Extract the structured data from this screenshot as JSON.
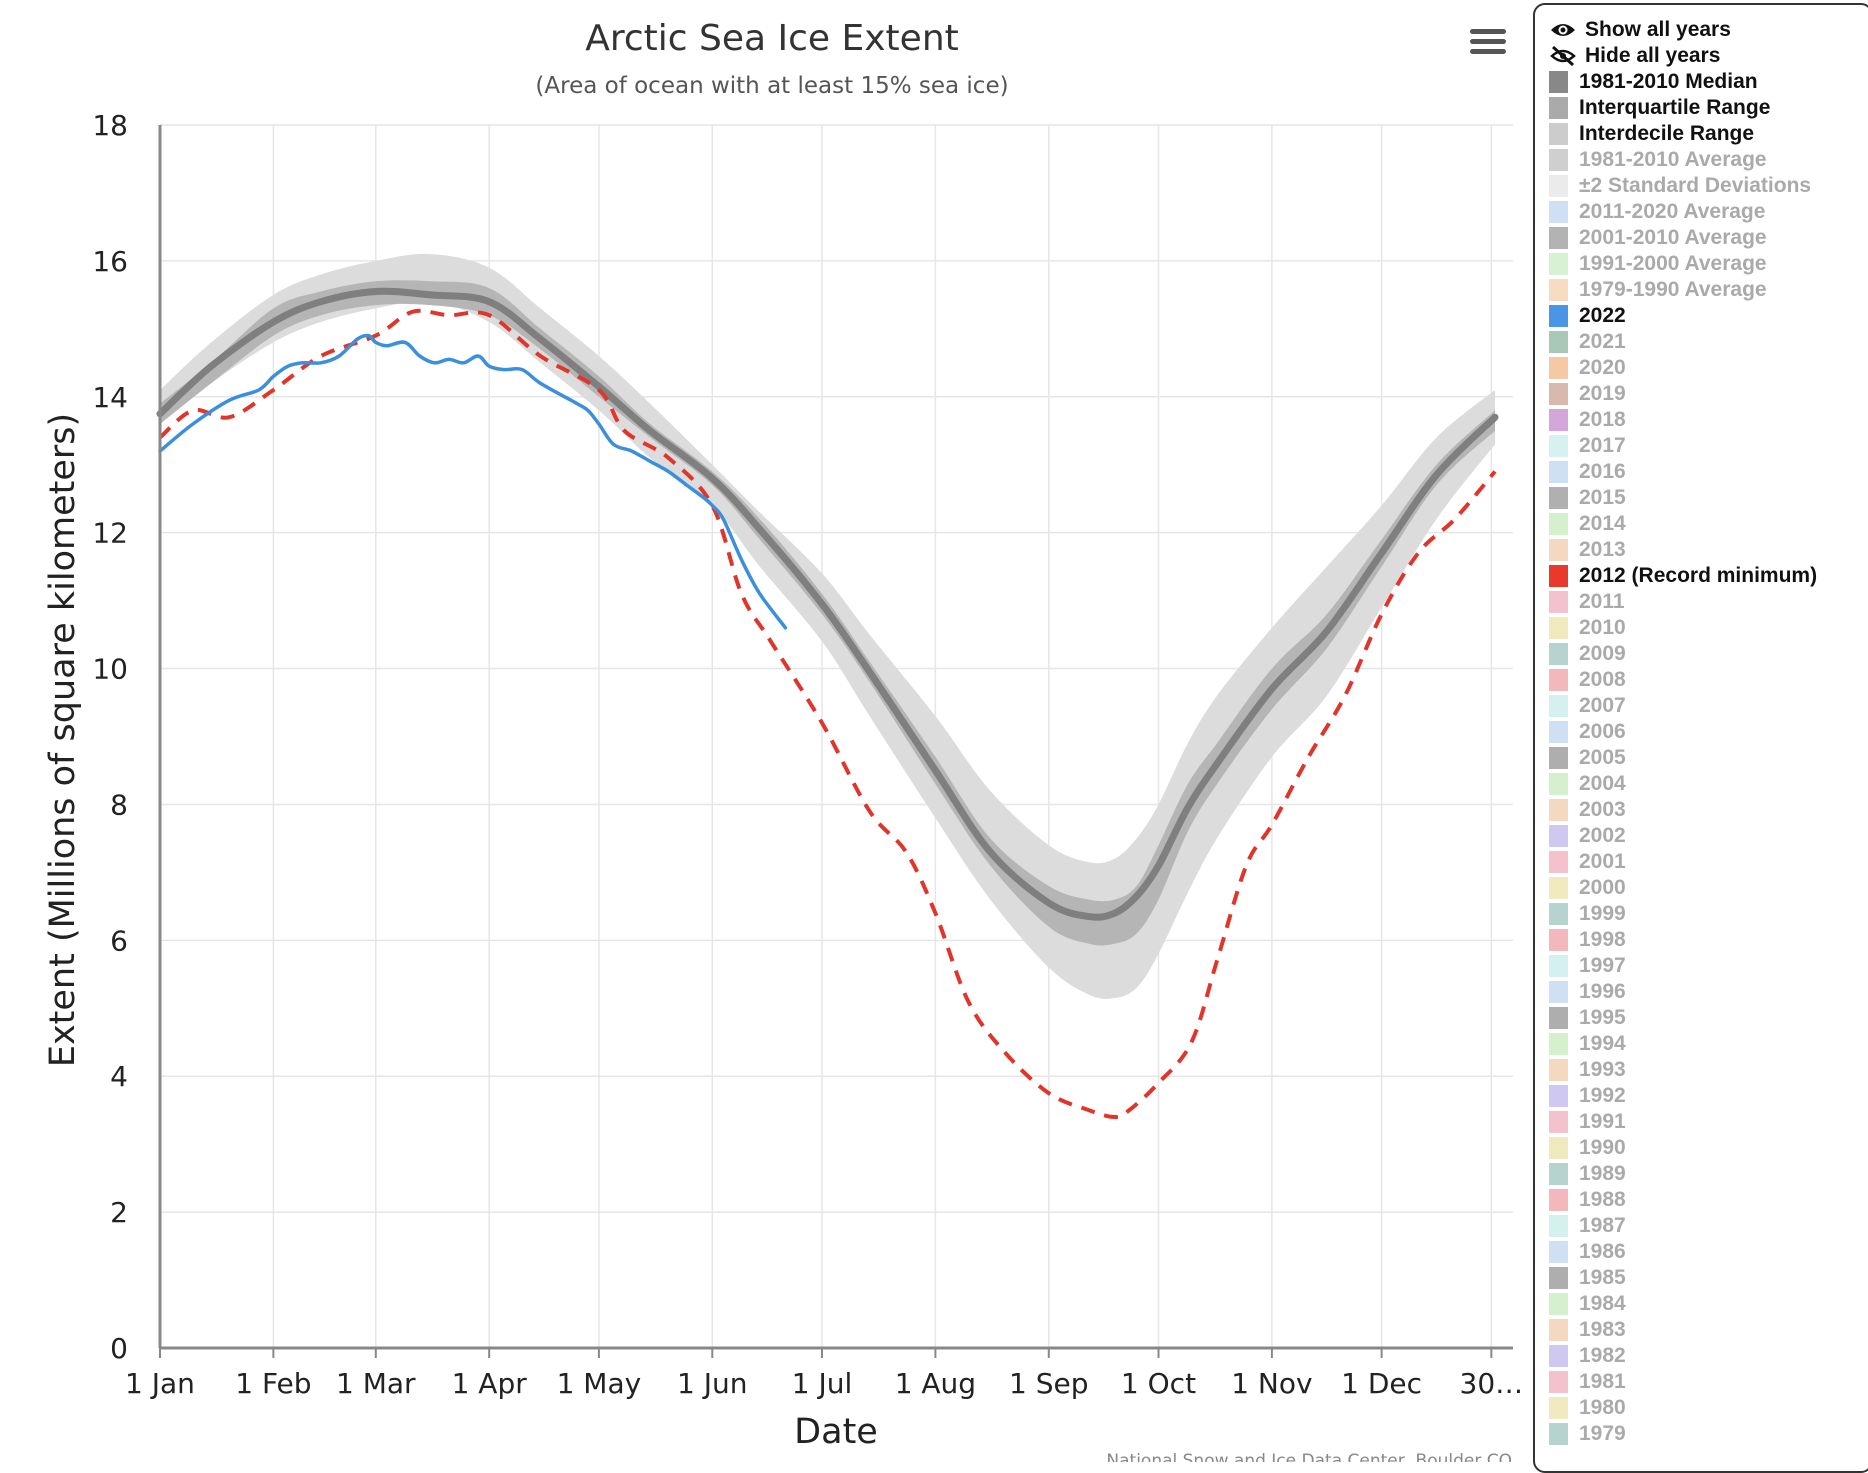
{
  "chart_data": {
    "type": "line",
    "title": "Arctic Sea Ice Extent",
    "subtitle": "(Area of ocean with at least 15% sea ice)",
    "xlabel": "Date",
    "ylabel": "Extent (Millions of square kilometers)",
    "xlim": [
      1,
      366
    ],
    "ylim": [
      0,
      18
    ],
    "yticks": [
      0,
      2,
      4,
      6,
      8,
      10,
      12,
      14,
      16,
      18
    ],
    "xticks": [
      {
        "day": 1,
        "label": "1 Jan"
      },
      {
        "day": 32,
        "label": "1 Feb"
      },
      {
        "day": 60,
        "label": "1 Mar"
      },
      {
        "day": 91,
        "label": "1 Apr"
      },
      {
        "day": 121,
        "label": "1 May"
      },
      {
        "day": 152,
        "label": "1 Jun"
      },
      {
        "day": 182,
        "label": "1 Jul"
      },
      {
        "day": 213,
        "label": "1 Aug"
      },
      {
        "day": 244,
        "label": "1 Sep"
      },
      {
        "day": 274,
        "label": "1 Oct"
      },
      {
        "day": 305,
        "label": "1 Nov"
      },
      {
        "day": 335,
        "label": "1 Dec"
      },
      {
        "day": 365,
        "label": "30…"
      }
    ],
    "grid": true,
    "legend_position": "right",
    "credit": "National Snow and Ice Data Center, Boulder CO",
    "series": [
      {
        "name": "Interdecile Range",
        "kind": "band",
        "color": "#dcdcdc",
        "x": [
          1,
          15,
          32,
          45,
          60,
          75,
          91,
          105,
          121,
          135,
          152,
          165,
          182,
          195,
          213,
          228,
          244,
          255,
          262,
          268,
          274,
          282,
          290,
          305,
          320,
          335,
          350,
          366
        ],
        "low": [
          13.6,
          14.2,
          14.8,
          15.1,
          15.3,
          15.4,
          15.1,
          14.5,
          13.8,
          13.1,
          12.4,
          11.5,
          10.4,
          9.3,
          7.8,
          6.6,
          5.6,
          5.2,
          5.15,
          5.3,
          5.8,
          6.7,
          7.5,
          8.7,
          9.6,
          10.9,
          12.2,
          13.3
        ],
        "high": [
          14.1,
          14.8,
          15.5,
          15.8,
          16.0,
          16.1,
          15.9,
          15.3,
          14.6,
          13.9,
          13.0,
          12.3,
          11.4,
          10.5,
          9.3,
          8.2,
          7.4,
          7.15,
          7.2,
          7.5,
          8.0,
          8.9,
          9.6,
          10.6,
          11.5,
          12.4,
          13.4,
          14.1
        ]
      },
      {
        "name": "Interquartile Range",
        "kind": "band",
        "color": "#b5b5b5",
        "x": [
          1,
          15,
          32,
          45,
          60,
          75,
          91,
          105,
          121,
          135,
          152,
          165,
          182,
          195,
          213,
          228,
          244,
          255,
          262,
          268,
          274,
          282,
          290,
          305,
          320,
          335,
          350,
          366
        ],
        "low": [
          13.6,
          14.2,
          14.9,
          15.2,
          15.35,
          15.35,
          15.2,
          14.7,
          14.0,
          13.4,
          12.7,
          11.9,
          10.8,
          9.8,
          8.3,
          7.1,
          6.2,
          5.95,
          5.95,
          6.1,
          6.6,
          7.6,
          8.3,
          9.4,
          10.3,
          11.5,
          12.7,
          13.5
        ],
        "high": [
          13.9,
          14.5,
          15.3,
          15.55,
          15.7,
          15.7,
          15.6,
          15.0,
          14.3,
          13.6,
          12.9,
          12.2,
          11.1,
          10.1,
          8.7,
          7.5,
          6.8,
          6.6,
          6.6,
          6.8,
          7.4,
          8.3,
          8.9,
          10.0,
          10.8,
          11.9,
          13.0,
          13.8
        ]
      },
      {
        "name": "1981-2010 Median",
        "kind": "line",
        "color": "#7f7f7f",
        "width": 7,
        "x": [
          1,
          15,
          32,
          45,
          60,
          75,
          91,
          105,
          121,
          135,
          152,
          165,
          182,
          195,
          213,
          228,
          244,
          255,
          262,
          268,
          274,
          282,
          290,
          305,
          320,
          335,
          350,
          366
        ],
        "y": [
          13.75,
          14.45,
          15.1,
          15.4,
          15.55,
          15.5,
          15.4,
          14.85,
          14.15,
          13.5,
          12.8,
          12.05,
          10.95,
          9.95,
          8.5,
          7.3,
          6.55,
          6.35,
          6.4,
          6.65,
          7.1,
          7.95,
          8.6,
          9.7,
          10.55,
          11.7,
          12.85,
          13.7
        ]
      },
      {
        "name": "2012 (Record minimum)",
        "kind": "line",
        "dash": "14,10",
        "color": "#e0352b",
        "width": 4,
        "x": [
          1,
          10,
          20,
          32,
          45,
          60,
          70,
          80,
          91,
          105,
          121,
          128,
          140,
          152,
          160,
          168,
          182,
          195,
          205,
          213,
          222,
          232,
          244,
          255,
          262,
          266,
          274,
          283,
          290,
          298,
          305,
          315,
          325,
          335,
          345,
          355,
          366
        ],
        "y": [
          13.4,
          13.8,
          13.7,
          14.1,
          14.6,
          14.9,
          15.25,
          15.2,
          15.2,
          14.6,
          14.1,
          13.5,
          13.1,
          12.4,
          11.1,
          10.4,
          9.2,
          7.9,
          7.3,
          6.4,
          5.1,
          4.35,
          3.75,
          3.5,
          3.4,
          3.5,
          3.9,
          4.5,
          5.7,
          7.1,
          7.7,
          8.7,
          9.6,
          10.8,
          11.7,
          12.2,
          12.9
        ]
      },
      {
        "name": "2022",
        "kind": "line",
        "color": "#3c8fdc",
        "width": 3.5,
        "x": [
          1,
          10,
          20,
          28,
          32,
          36,
          40,
          45,
          50,
          55,
          58,
          60,
          63,
          68,
          72,
          76,
          80,
          84,
          88,
          91,
          95,
          100,
          105,
          115,
          118,
          121,
          125,
          130,
          135,
          140,
          145,
          150,
          152,
          155,
          160,
          165,
          172
        ],
        "y": [
          13.2,
          13.6,
          13.95,
          14.1,
          14.3,
          14.45,
          14.5,
          14.5,
          14.6,
          14.85,
          14.9,
          14.8,
          14.75,
          14.8,
          14.6,
          14.5,
          14.55,
          14.5,
          14.6,
          14.45,
          14.4,
          14.4,
          14.2,
          13.9,
          13.8,
          13.6,
          13.3,
          13.2,
          13.05,
          12.9,
          12.7,
          12.5,
          12.4,
          12.2,
          11.6,
          11.1,
          10.6
        ]
      }
    ]
  },
  "menu_icon": "hamburger-icon",
  "legend": {
    "show_all": "Show all years",
    "hide_all": "Hide all years",
    "show_icon": "eye-icon",
    "hide_icon": "eye-off-icon",
    "items": [
      {
        "label": "1981-2010 Median",
        "color": "#888888",
        "active": true
      },
      {
        "label": "Interquartile Range",
        "color": "#aaaaaa",
        "active": true
      },
      {
        "label": "Interdecile Range",
        "color": "#cccccc",
        "active": true
      },
      {
        "label": "1981-2010 Average",
        "color": "#cfcfcf",
        "active": false
      },
      {
        "label": "±2 Standard Deviations",
        "color": "#ebebeb",
        "active": false
      },
      {
        "label": "2011-2020 Average",
        "color": "#cfe0f5",
        "active": false
      },
      {
        "label": "2001-2010 Average",
        "color": "#b3b3b3",
        "active": false
      },
      {
        "label": "1991-2000 Average",
        "color": "#d7f2d2",
        "active": false
      },
      {
        "label": "1979-1990 Average",
        "color": "#f8dcc2",
        "active": false
      },
      {
        "label": "2022",
        "color": "#4a95e5",
        "active": true
      },
      {
        "label": "2021",
        "color": "#a9c8b6",
        "active": false
      },
      {
        "label": "2020",
        "color": "#f5c9a3",
        "active": false
      },
      {
        "label": "2019",
        "color": "#d9b9ae",
        "active": false
      },
      {
        "label": "2018",
        "color": "#d3a6dc",
        "active": false
      },
      {
        "label": "2017",
        "color": "#d6f1ef",
        "active": false
      },
      {
        "label": "2016",
        "color": "#cfdff4",
        "active": false
      },
      {
        "label": "2015",
        "color": "#b0b0b0",
        "active": false
      },
      {
        "label": "2014",
        "color": "#d5f0cd",
        "active": false
      },
      {
        "label": "2013",
        "color": "#f5d8c0",
        "active": false
      },
      {
        "label": "2012 (Record minimum)",
        "color": "#e8392c",
        "active": true
      },
      {
        "label": "2011",
        "color": "#f3c2cc",
        "active": false
      },
      {
        "label": "2010",
        "color": "#f1eabf",
        "active": false
      },
      {
        "label": "2009",
        "color": "#b7d3cf",
        "active": false
      },
      {
        "label": "2008",
        "color": "#f2b8bc",
        "active": false
      },
      {
        "label": "2007",
        "color": "#d5f1ef",
        "active": false
      },
      {
        "label": "2006",
        "color": "#cfdff4",
        "active": false
      },
      {
        "label": "2005",
        "color": "#aeaeae",
        "active": false
      },
      {
        "label": "2004",
        "color": "#d5f0cd",
        "active": false
      },
      {
        "label": "2003",
        "color": "#f5d8c0",
        "active": false
      },
      {
        "label": "2002",
        "color": "#cfc9f2",
        "active": false
      },
      {
        "label": "2001",
        "color": "#f3c2cc",
        "active": false
      },
      {
        "label": "2000",
        "color": "#f1eabf",
        "active": false
      },
      {
        "label": "1999",
        "color": "#b7d3cf",
        "active": false
      },
      {
        "label": "1998",
        "color": "#f2b8bc",
        "active": false
      },
      {
        "label": "1997",
        "color": "#d5f1ef",
        "active": false
      },
      {
        "label": "1996",
        "color": "#cfdff4",
        "active": false
      },
      {
        "label": "1995",
        "color": "#aeaeae",
        "active": false
      },
      {
        "label": "1994",
        "color": "#d5f0cd",
        "active": false
      },
      {
        "label": "1993",
        "color": "#f5d8c0",
        "active": false
      },
      {
        "label": "1992",
        "color": "#cfc9f2",
        "active": false
      },
      {
        "label": "1991",
        "color": "#f3c2cc",
        "active": false
      },
      {
        "label": "1990",
        "color": "#f1eabf",
        "active": false
      },
      {
        "label": "1989",
        "color": "#b7d3cf",
        "active": false
      },
      {
        "label": "1988",
        "color": "#f2b8bc",
        "active": false
      },
      {
        "label": "1987",
        "color": "#d5f1ef",
        "active": false
      },
      {
        "label": "1986",
        "color": "#cfdff4",
        "active": false
      },
      {
        "label": "1985",
        "color": "#aeaeae",
        "active": false
      },
      {
        "label": "1984",
        "color": "#d5f0cd",
        "active": false
      },
      {
        "label": "1983",
        "color": "#f5d8c0",
        "active": false
      },
      {
        "label": "1982",
        "color": "#cfc9f2",
        "active": false
      },
      {
        "label": "1981",
        "color": "#f3c2cc",
        "active": false
      },
      {
        "label": "1980",
        "color": "#f1eabf",
        "active": false
      },
      {
        "label": "1979",
        "color": "#b7d3cf",
        "active": false
      }
    ]
  }
}
